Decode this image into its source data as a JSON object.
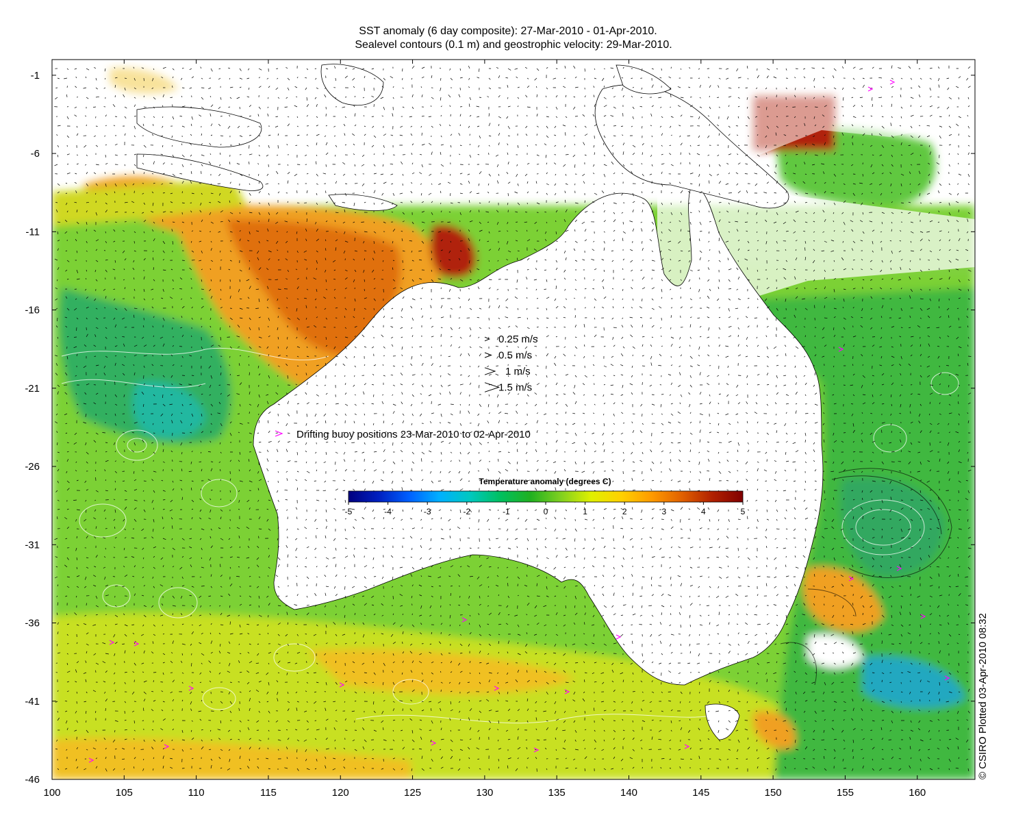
{
  "title": {
    "line1": "SST anomaly (6 day composite): 27-Mar-2010 - 01-Apr-2010.",
    "line2": "Sealevel contours (0.1 m) and geostrophic velocity: 29-Mar-2010."
  },
  "map": {
    "lon_range": [
      100,
      164
    ],
    "lat_range": [
      -46,
      0
    ],
    "x_ticks": [
      "100",
      "105",
      "110",
      "115",
      "120",
      "125",
      "130",
      "135",
      "140",
      "145",
      "150",
      "155",
      "160"
    ],
    "y_ticks": [
      "-1",
      "-6",
      "-11",
      "-16",
      "-21",
      "-26",
      "-31",
      "-36",
      "-41",
      "-46"
    ]
  },
  "velocity_legend": [
    {
      "label": "0.25 m/s",
      "speed": 0.25
    },
    {
      "label": "0.5 m/s",
      "speed": 0.5
    },
    {
      "label": "1 m/s",
      "speed": 1
    },
    {
      "label": "1.5 m/s",
      "speed": 1.5
    }
  ],
  "buoy_legend": {
    "label": "Drifting buoy positions 23-Mar-2010 to 02-Apr-2010",
    "color": "#ff00ff"
  },
  "colorbar": {
    "title": "Temperature anomaly (degrees C)",
    "ticks": [
      "-5",
      "-4",
      "-3",
      "-2",
      "-1",
      "0",
      "1",
      "2",
      "3",
      "4",
      "5"
    ],
    "range": [
      -5,
      5
    ],
    "stops": [
      "#00007f",
      "#0020c0",
      "#0060ff",
      "#00b0ff",
      "#00c8c0",
      "#00c060",
      "#20b020",
      "#80d020",
      "#e0f000",
      "#ffd000",
      "#ff9a00",
      "#e06000",
      "#b02000",
      "#800000"
    ]
  },
  "copyright": "© CSIRO Plotted 03-Apr-2010 08:32"
}
